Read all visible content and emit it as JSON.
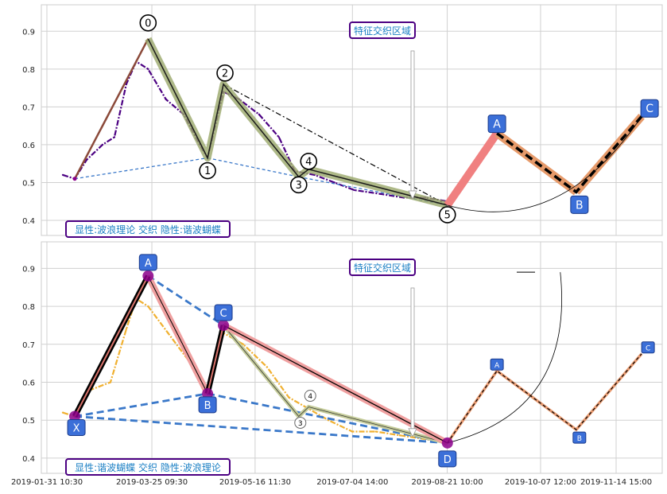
{
  "chart_data": [
    {
      "type": "line",
      "panel": "top",
      "yticks": [
        0.4,
        0.5,
        0.6,
        0.7,
        0.8,
        0.9
      ],
      "ylim": [
        0.36,
        0.97
      ],
      "grid": true,
      "annotation_box": "特征交织区域",
      "legend_label": "显性:波浪理论 交织 隐性:谐波蝴蝶",
      "colors": {
        "price": "#4b0082",
        "wave_line": "#8b4a3a",
        "wave_band": "#9aa86a",
        "dashed_blue": "#3a78c9",
        "projection_red": "#f08080",
        "projection_orange": "#e69a6a",
        "box_fill": "#3b6fd8",
        "label_text": "#1a7fc4"
      },
      "wave_points": [
        {
          "label": "0",
          "date": "2019-03-23",
          "value": 0.88
        },
        {
          "label": "1",
          "date": "2019-04-22",
          "value": 0.565
        },
        {
          "label": "2",
          "date": "2019-04-30",
          "value": 0.76
        },
        {
          "label": "3",
          "date": "2019-06-07",
          "value": 0.515
        },
        {
          "label": "4",
          "date": "2019-06-12",
          "value": 0.535
        },
        {
          "label": "5",
          "date": "2019-08-21",
          "value": 0.44
        }
      ],
      "start_point": {
        "date": "2019-02-14",
        "value": 0.51
      },
      "projection_points": [
        {
          "label": "A",
          "date": "2019-09-15",
          "value": 0.63
        },
        {
          "label": "B",
          "date": "2019-10-25",
          "value": 0.475
        },
        {
          "label": "C",
          "date": "2019-11-27",
          "value": 0.675
        }
      ],
      "price_series": [
        {
          "date": "2019-02-08",
          "value": 0.52
        },
        {
          "date": "2019-02-14",
          "value": 0.51
        },
        {
          "date": "2019-02-20",
          "value": 0.56
        },
        {
          "date": "2019-02-28",
          "value": 0.6
        },
        {
          "date": "2019-03-06",
          "value": 0.62
        },
        {
          "date": "2019-03-12",
          "value": 0.76
        },
        {
          "date": "2019-03-17",
          "value": 0.82
        },
        {
          "date": "2019-03-23",
          "value": 0.8
        },
        {
          "date": "2019-04-01",
          "value": 0.72
        },
        {
          "date": "2019-04-10",
          "value": 0.68
        },
        {
          "date": "2019-04-18",
          "value": 0.6
        },
        {
          "date": "2019-04-22",
          "value": 0.565
        },
        {
          "date": "2019-04-30",
          "value": 0.74
        },
        {
          "date": "2019-05-08",
          "value": 0.72
        },
        {
          "date": "2019-05-18",
          "value": 0.68
        },
        {
          "date": "2019-05-28",
          "value": 0.62
        },
        {
          "date": "2019-06-05",
          "value": 0.53
        },
        {
          "date": "2019-06-15",
          "value": 0.52
        },
        {
          "date": "2019-06-25",
          "value": 0.5
        },
        {
          "date": "2019-07-05",
          "value": 0.48
        },
        {
          "date": "2019-07-18",
          "value": 0.47
        },
        {
          "date": "2019-07-30",
          "value": 0.46
        },
        {
          "date": "2019-08-10",
          "value": 0.46
        },
        {
          "date": "2019-08-21",
          "value": 0.45
        }
      ]
    },
    {
      "type": "line",
      "panel": "bottom",
      "yticks": [
        0.4,
        0.5,
        0.6,
        0.7,
        0.8,
        0.9
      ],
      "ylim": [
        0.36,
        0.97
      ],
      "grid": true,
      "annotation_box": "特征交织区域",
      "legend_label": "显性:谐波蝴蝶 交织 隐性:波浪理论",
      "xticks": [
        "2019-01-31 10:30",
        "2019-03-25 09:30",
        "2019-05-16 11:30",
        "2019-07-04 14:00",
        "2019-08-21 10:00",
        "2019-10-07 12:00",
        "2019-11-14 15:00"
      ],
      "colors": {
        "price": "#f0b030",
        "harmonic_line": "#000000",
        "harmonic_band": "#f0a0a0",
        "dashed_blue": "#3a78c9",
        "point_fill": "#8b008b",
        "box_fill": "#3b6fd8",
        "label_text": "#1a7fc4"
      },
      "harmonic_points": [
        {
          "label": "X",
          "date": "2019-02-14",
          "value": 0.51
        },
        {
          "label": "A",
          "date": "2019-03-23",
          "value": 0.88
        },
        {
          "label": "B",
          "date": "2019-04-22",
          "value": 0.57
        },
        {
          "label": "C",
          "date": "2019-04-30",
          "value": 0.75
        },
        {
          "label": "D",
          "date": "2019-08-21",
          "value": 0.44
        }
      ],
      "wave_small_points": [
        {
          "label": "3",
          "date": "2019-06-07",
          "value": 0.51
        },
        {
          "label": "4",
          "date": "2019-06-12",
          "value": 0.535
        }
      ],
      "projection_points": [
        {
          "label": "A",
          "date": "2019-09-15",
          "value": 0.63
        },
        {
          "label": "B",
          "date": "2019-10-25",
          "value": 0.475
        },
        {
          "label": "C",
          "date": "2019-11-27",
          "value": 0.675
        }
      ],
      "price_series": [
        {
          "date": "2019-02-08",
          "value": 0.52
        },
        {
          "date": "2019-02-14",
          "value": 0.51
        },
        {
          "date": "2019-02-22",
          "value": 0.58
        },
        {
          "date": "2019-03-04",
          "value": 0.6
        },
        {
          "date": "2019-03-12",
          "value": 0.74
        },
        {
          "date": "2019-03-17",
          "value": 0.82
        },
        {
          "date": "2019-03-23",
          "value": 0.8
        },
        {
          "date": "2019-04-02",
          "value": 0.73
        },
        {
          "date": "2019-04-12",
          "value": 0.66
        },
        {
          "date": "2019-04-22",
          "value": 0.57
        },
        {
          "date": "2019-04-30",
          "value": 0.73
        },
        {
          "date": "2019-05-10",
          "value": 0.7
        },
        {
          "date": "2019-05-22",
          "value": 0.64
        },
        {
          "date": "2019-06-02",
          "value": 0.56
        },
        {
          "date": "2019-06-12",
          "value": 0.53
        },
        {
          "date": "2019-06-22",
          "value": 0.5
        },
        {
          "date": "2019-07-04",
          "value": 0.47
        },
        {
          "date": "2019-07-16",
          "value": 0.47
        },
        {
          "date": "2019-07-28",
          "value": 0.46
        },
        {
          "date": "2019-08-10",
          "value": 0.45
        },
        {
          "date": "2019-08-21",
          "value": 0.44
        }
      ]
    }
  ]
}
